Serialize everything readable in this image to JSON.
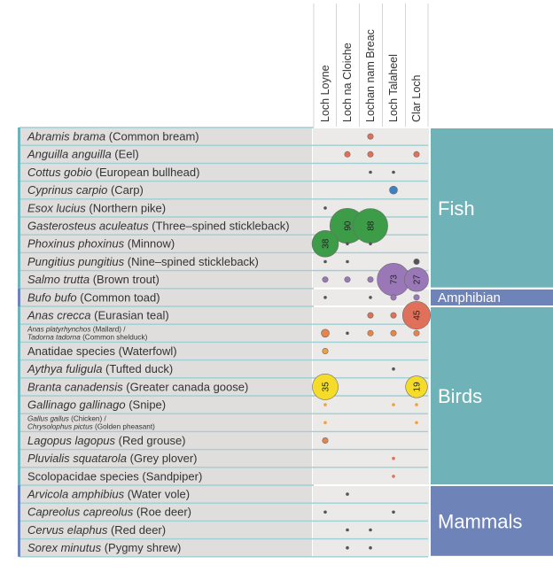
{
  "chart_data": {
    "type": "bubble-matrix",
    "columns": [
      "Loch Loyne",
      "Loch na Cloiche",
      "Lochan nam Breac",
      "Loch Talaheel",
      "Clar Loch"
    ],
    "groups": [
      {
        "name": "Fish",
        "color": "#6fb3b8"
      },
      {
        "name": "Amphibian",
        "color": "#6e83b8"
      },
      {
        "name": "Birds",
        "color": "#6fb3b8"
      },
      {
        "name": "Mammals",
        "color": "#6e83b8"
      }
    ],
    "rows": [
      {
        "group": "Fish",
        "sci": "Abramis brama",
        "common": " (Common bream)",
        "values": [
          0,
          0,
          2,
          0,
          0
        ],
        "colors": [
          "",
          "",
          "#e0705a",
          "",
          ""
        ]
      },
      {
        "group": "Fish",
        "sci": "Anguilla anguilla",
        "common": " (Eel)",
        "values": [
          0,
          2,
          2,
          0,
          2
        ],
        "colors": [
          "",
          "#e0705a",
          "#e0705a",
          "",
          "#e0705a"
        ]
      },
      {
        "group": "Fish",
        "sci": "Cottus gobio",
        "common": " (European bullhead)",
        "values": [
          0,
          0,
          1,
          1,
          0
        ],
        "colors": [
          "",
          "",
          "#555555",
          "#555555",
          ""
        ]
      },
      {
        "group": "Fish",
        "sci": "Cyprinus carpio",
        "common": " (Carp)",
        "values": [
          0,
          0,
          0,
          4,
          0
        ],
        "colors": [
          "",
          "",
          "",
          "#3a82c4",
          ""
        ]
      },
      {
        "group": "Fish",
        "sci": "Esox lucius",
        "common": " (Northern pike)",
        "values": [
          1,
          0,
          0,
          0,
          0
        ],
        "colors": [
          "#555555",
          "",
          "",
          "",
          ""
        ]
      },
      {
        "group": "Fish",
        "sci": "Gasterosteus aculeatus",
        "common": " (Three–spined stickleback)",
        "values": [
          0,
          90,
          88,
          0,
          0
        ],
        "colors": [
          "",
          "#3c9c48",
          "#3c9c48",
          "",
          ""
        ]
      },
      {
        "group": "Fish",
        "sci": "Phoxinus phoxinus",
        "common": " (Minnow)",
        "values": [
          38,
          1,
          1,
          0,
          0
        ],
        "colors": [
          "#3c9c48",
          "#555555",
          "#555555",
          "",
          ""
        ]
      },
      {
        "group": "Fish",
        "sci": "Pungitius pungitius",
        "common": " (Nine–spined stickleback)",
        "values": [
          1,
          1,
          0,
          0,
          2
        ],
        "colors": [
          "#555555",
          "#555555",
          "",
          "",
          "#555555"
        ]
      },
      {
        "group": "Fish",
        "sci": "Salmo trutta",
        "common": " (Brown trout)",
        "values": [
          3,
          3,
          3,
          73,
          27
        ],
        "colors": [
          "#9a78b8",
          "#9a78b8",
          "#9a78b8",
          "#9a78b8",
          "#9a78b8"
        ]
      },
      {
        "group": "Amphibian",
        "sci": "Bufo bufo",
        "common": " (Common toad)",
        "values": [
          1,
          0,
          1,
          3,
          3
        ],
        "colors": [
          "#555555",
          "",
          "#555555",
          "#9a78b8",
          "#9a78b8"
        ]
      },
      {
        "group": "Birds",
        "sci": "Anas crecca",
        "common": " (Eurasian teal)",
        "values": [
          0,
          0,
          2,
          3,
          45
        ],
        "colors": [
          "",
          "",
          "#e0705a",
          "#e0705a",
          "#e0705a"
        ]
      },
      {
        "group": "Birds",
        "sci": "Anas platyrhynchos",
        "common": " (Mallard) /",
        "sci2": "Tadorna tadorna",
        "common2": " (Common shelduck)",
        "small": true,
        "values": [
          6,
          1,
          2,
          3,
          2
        ],
        "colors": [
          "#e8844a",
          "#555555",
          "#e8844a",
          "#e8844a",
          "#e8844a"
        ]
      },
      {
        "group": "Birds",
        "sci": "",
        "common": "Anatidae species (Waterfowl)",
        "values": [
          2,
          0,
          0,
          0,
          0
        ],
        "colors": [
          "#f0a040",
          "",
          "",
          "",
          ""
        ]
      },
      {
        "group": "Birds",
        "sci": "Aythya fuligula",
        "common": " (Tufted duck)",
        "values": [
          0,
          0,
          0,
          1,
          0
        ],
        "colors": [
          "",
          "",
          "",
          "#555555",
          ""
        ]
      },
      {
        "group": "Birds",
        "sci": "Branta canadensis",
        "common": " (Greater canada goose)",
        "values": [
          35,
          0,
          0,
          0,
          19
        ],
        "colors": [
          "#f5dc2a",
          "",
          "",
          "",
          "#f5dc2a"
        ]
      },
      {
        "group": "Birds",
        "sci": "Gallinago gallinago",
        "common": " (Snipe)",
        "values": [
          1,
          0,
          0,
          1,
          1
        ],
        "colors": [
          "#f0a040",
          "",
          "",
          "#f0a040",
          "#f0a040"
        ]
      },
      {
        "group": "Birds",
        "sci": "Gallus gallus",
        "common": " (Chicken) /",
        "sci2": "Chrysolophus pictus",
        "common2": " (Golden pheasant)",
        "small": true,
        "values": [
          1,
          0,
          0,
          0,
          1
        ],
        "colors": [
          "#f0a040",
          "",
          "",
          "",
          "#f0a040"
        ]
      },
      {
        "group": "Birds",
        "sci": "Lagopus lagopus",
        "common": " (Red grouse)",
        "values": [
          2,
          0,
          0,
          0,
          0
        ],
        "colors": [
          "#e8844a",
          "",
          "",
          "",
          ""
        ]
      },
      {
        "group": "Birds",
        "sci": "Pluvialis squatarola",
        "common": " (Grey plover)",
        "values": [
          0,
          0,
          0,
          1,
          0
        ],
        "colors": [
          "",
          "",
          "",
          "#e0705a",
          ""
        ]
      },
      {
        "group": "Birds",
        "sci": "",
        "common": "Scolopacidae species (Sandpiper)",
        "values": [
          0,
          0,
          0,
          1,
          0
        ],
        "colors": [
          "",
          "",
          "",
          "#e0705a",
          ""
        ]
      },
      {
        "group": "Mammals",
        "sci": "Arvicola amphibius",
        "common": " (Water vole)",
        "values": [
          0,
          1,
          0,
          0,
          0
        ],
        "colors": [
          "",
          "#555555",
          "",
          "",
          ""
        ]
      },
      {
        "group": "Mammals",
        "sci": "Capreolus capreolus",
        "common": " (Roe deer)",
        "values": [
          1,
          0,
          0,
          1,
          0
        ],
        "colors": [
          "#555555",
          "",
          "",
          "#555555",
          ""
        ]
      },
      {
        "group": "Mammals",
        "sci": "Cervus elaphus",
        "common": " (Red deer)",
        "values": [
          0,
          1,
          1,
          0,
          0
        ],
        "colors": [
          "",
          "#555555",
          "#555555",
          "",
          ""
        ]
      },
      {
        "group": "Mammals",
        "sci": "Sorex minutus",
        "common": " (Pygmy shrew)",
        "values": [
          0,
          1,
          1,
          0,
          0
        ],
        "colors": [
          "",
          "#555555",
          "#555555",
          "",
          ""
        ]
      }
    ],
    "labeled_threshold": 10
  }
}
